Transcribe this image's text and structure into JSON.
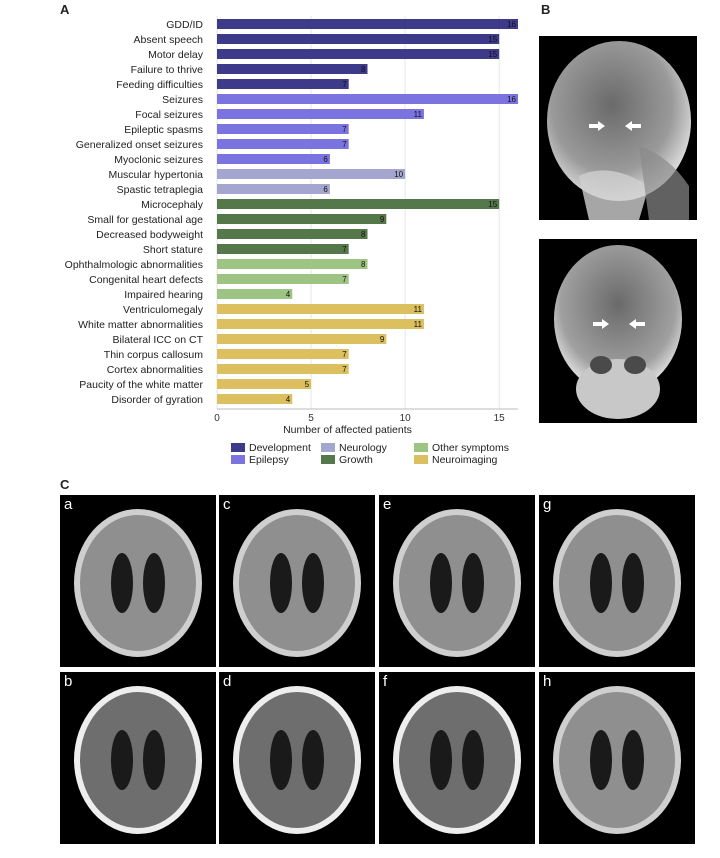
{
  "panels": {
    "a": "A",
    "b": "B",
    "c": "C"
  },
  "chart_data": {
    "type": "bar",
    "orientation": "horizontal",
    "categories": [
      "GDD/ID",
      "Absent speech",
      "Motor delay",
      "Failure to thrive",
      "Feeding difficulties",
      "Seizures",
      "Focal seizures",
      "Epileptic spasms",
      "Generalized onset seizures",
      "Myoclonic seizures",
      "Muscular hypertonia",
      "Spastic tetraplegia",
      "Microcephaly",
      "Small for gestational age",
      "Decreased bodyweight",
      "Short stature",
      "Ophthalmologic abnormalities",
      "Congenital heart defects",
      "Impaired hearing",
      "Ventriculomegaly",
      "White matter abnormalities",
      "Bilateral ICC on CT",
      "Thin corpus callosum",
      "Cortex abnormalities",
      "Paucity of the white matter",
      "Disorder of gyration"
    ],
    "values": [
      16,
      15,
      15,
      8,
      7,
      16,
      11,
      7,
      7,
      6,
      10,
      6,
      15,
      9,
      8,
      7,
      8,
      7,
      4,
      11,
      11,
      9,
      7,
      7,
      5,
      4
    ],
    "groups": [
      "Development",
      "Development",
      "Development",
      "Development",
      "Development",
      "Epilepsy",
      "Epilepsy",
      "Epilepsy",
      "Epilepsy",
      "Epilepsy",
      "Neurology",
      "Neurology",
      "Growth",
      "Growth",
      "Growth",
      "Growth",
      "Other symptoms",
      "Other symptoms",
      "Other symptoms",
      "Neuroimaging",
      "Neuroimaging",
      "Neuroimaging",
      "Neuroimaging",
      "Neuroimaging",
      "Neuroimaging",
      "Neuroimaging"
    ],
    "xlabel": "Number of affected patients",
    "xlim": [
      0,
      16
    ],
    "xticks": [
      0,
      5,
      10,
      15
    ],
    "grid": true,
    "legend": [
      {
        "name": "Development",
        "color": "#3e3a8a"
      },
      {
        "name": "Epilepsy",
        "color": "#7b73e0"
      },
      {
        "name": "Neurology",
        "color": "#a4a6cf"
      },
      {
        "name": "Growth",
        "color": "#55784a"
      },
      {
        "name": "Other symptoms",
        "color": "#9dc483"
      },
      {
        "name": "Neuroimaging",
        "color": "#dcbf5f"
      }
    ],
    "legend_position": "bottom"
  },
  "mri_labels": [
    "a",
    "c",
    "e",
    "g",
    "b",
    "d",
    "f",
    "h"
  ]
}
